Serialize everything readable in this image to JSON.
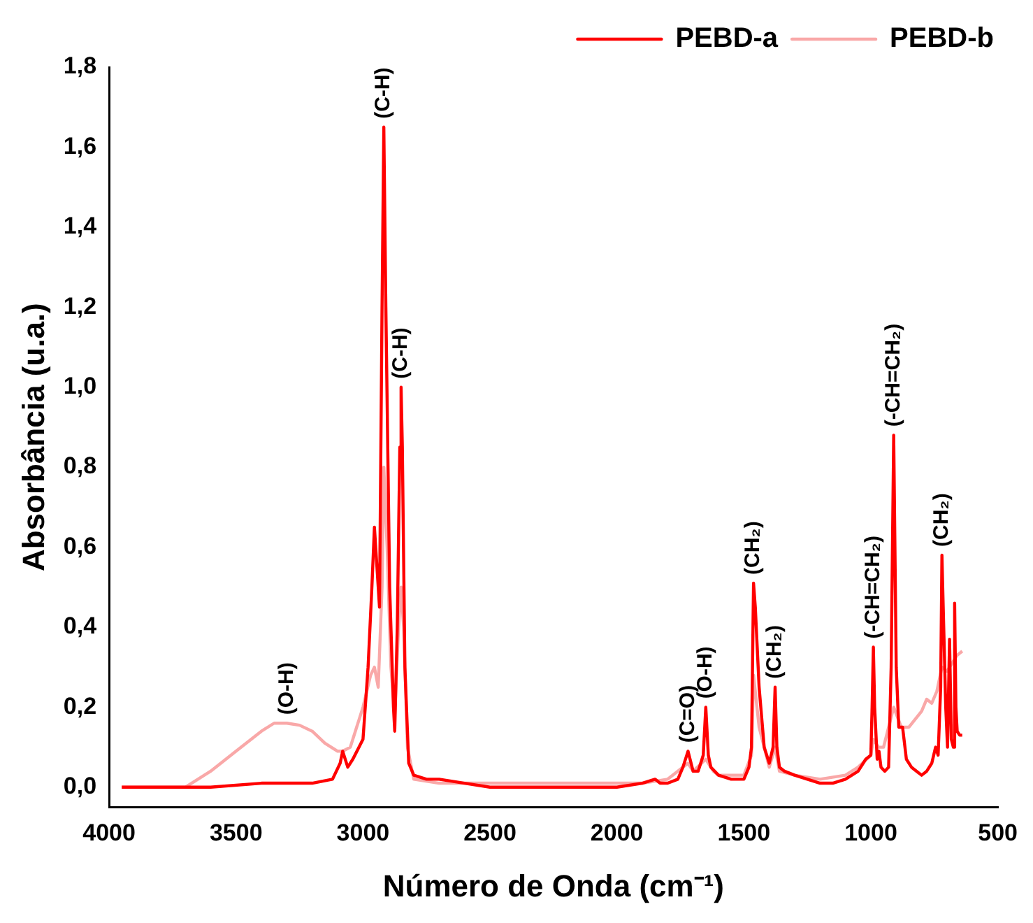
{
  "chart_data": {
    "type": "line",
    "xlabel": "Número de Onda (cm⁻¹)",
    "ylabel": "Absorbância (u.a.)",
    "xlim": [
      4000,
      500
    ],
    "xticks": [
      4000,
      3500,
      3000,
      2500,
      2000,
      1500,
      1000,
      500
    ],
    "ylim": [
      -0.05,
      1.8
    ],
    "yticks": [
      {
        "value": 0,
        "label": "0,0"
      },
      {
        "value": 0.2,
        "label": "0,2"
      },
      {
        "value": 0.4,
        "label": "0,4"
      },
      {
        "value": 0.6,
        "label": "0,6"
      },
      {
        "value": 0.8,
        "label": "0,8"
      },
      {
        "value": 1.0,
        "label": "1,0"
      },
      {
        "value": 1.2,
        "label": "1,2"
      },
      {
        "value": 1.4,
        "label": "1,4"
      },
      {
        "value": 1.6,
        "label": "1,6"
      },
      {
        "value": 1.8,
        "label": "1,8"
      }
    ],
    "grid": false,
    "legend": "top right",
    "marker": "none",
    "line_style": "solid",
    "series": [
      {
        "name": "PEBD-a",
        "color": "#ff0000",
        "x": [
          3950,
          3800,
          3600,
          3400,
          3200,
          3120,
          3090,
          3080,
          3060,
          3040,
          3000,
          2980,
          2965,
          2955,
          2945,
          2935,
          2925,
          2918,
          2910,
          2895,
          2880,
          2875,
          2865,
          2855,
          2850,
          2845,
          2835,
          2820,
          2800,
          2750,
          2700,
          2600,
          2500,
          2400,
          2300,
          2200,
          2100,
          2000,
          1900,
          1850,
          1830,
          1800,
          1760,
          1740,
          1720,
          1700,
          1680,
          1660,
          1650,
          1640,
          1630,
          1600,
          1550,
          1500,
          1480,
          1470,
          1462,
          1455,
          1440,
          1420,
          1400,
          1385,
          1377,
          1370,
          1360,
          1340,
          1300,
          1250,
          1200,
          1150,
          1100,
          1050,
          1020,
          1000,
          995,
          990,
          985,
          975,
          968,
          960,
          945,
          930,
          920,
          910,
          900,
          890,
          875,
          860,
          840,
          820,
          800,
          780,
          760,
          745,
          735,
          725,
          720,
          715,
          705,
          698,
          690,
          683,
          675,
          670,
          665,
          660,
          650,
          640
        ],
        "values": [
          0.0,
          0.0,
          0.0,
          0.01,
          0.01,
          0.02,
          0.06,
          0.09,
          0.05,
          0.07,
          0.12,
          0.3,
          0.5,
          0.65,
          0.55,
          0.45,
          1.2,
          1.65,
          1.2,
          0.5,
          0.2,
          0.14,
          0.4,
          0.85,
          1.0,
          0.85,
          0.3,
          0.06,
          0.03,
          0.02,
          0.02,
          0.01,
          0.0,
          0.0,
          0.0,
          0.0,
          0.0,
          0.0,
          0.01,
          0.02,
          0.01,
          0.01,
          0.02,
          0.05,
          0.09,
          0.04,
          0.04,
          0.08,
          0.2,
          0.08,
          0.05,
          0.03,
          0.02,
          0.02,
          0.05,
          0.1,
          0.51,
          0.45,
          0.25,
          0.1,
          0.06,
          0.1,
          0.25,
          0.1,
          0.05,
          0.04,
          0.03,
          0.02,
          0.01,
          0.01,
          0.02,
          0.04,
          0.07,
          0.08,
          0.2,
          0.35,
          0.2,
          0.07,
          0.09,
          0.05,
          0.04,
          0.05,
          0.3,
          0.88,
          0.3,
          0.15,
          0.15,
          0.07,
          0.05,
          0.04,
          0.03,
          0.04,
          0.06,
          0.1,
          0.08,
          0.25,
          0.58,
          0.45,
          0.2,
          0.1,
          0.37,
          0.12,
          0.1,
          0.46,
          0.2,
          0.14,
          0.13,
          0.13
        ]
      },
      {
        "name": "PEBD-b",
        "color": "#f9a8a8",
        "x": [
          3950,
          3800,
          3700,
          3650,
          3600,
          3500,
          3400,
          3350,
          3300,
          3250,
          3200,
          3150,
          3100,
          3080,
          3050,
          3000,
          2970,
          2955,
          2940,
          2925,
          2918,
          2905,
          2890,
          2875,
          2860,
          2850,
          2840,
          2825,
          2800,
          2700,
          2500,
          2300,
          2100,
          2000,
          1900,
          1800,
          1720,
          1700,
          1650,
          1620,
          1600,
          1500,
          1470,
          1462,
          1440,
          1400,
          1377,
          1360,
          1300,
          1200,
          1100,
          1050,
          1000,
          990,
          970,
          950,
          910,
          880,
          850,
          800,
          780,
          760,
          740,
          720,
          700,
          680,
          660,
          640
        ],
        "values": [
          0.0,
          0.0,
          0.0,
          0.02,
          0.04,
          0.09,
          0.14,
          0.16,
          0.16,
          0.155,
          0.14,
          0.11,
          0.09,
          0.09,
          0.1,
          0.2,
          0.28,
          0.3,
          0.25,
          0.5,
          0.8,
          0.6,
          0.3,
          0.18,
          0.4,
          0.5,
          0.4,
          0.1,
          0.02,
          0.01,
          0.01,
          0.01,
          0.01,
          0.01,
          0.01,
          0.02,
          0.06,
          0.04,
          0.07,
          0.04,
          0.03,
          0.03,
          0.08,
          0.28,
          0.15,
          0.05,
          0.1,
          0.04,
          0.03,
          0.02,
          0.03,
          0.05,
          0.08,
          0.12,
          0.1,
          0.1,
          0.2,
          0.15,
          0.15,
          0.19,
          0.22,
          0.21,
          0.24,
          0.3,
          0.29,
          0.31,
          0.33,
          0.34
        ]
      }
    ],
    "annotations": [
      {
        "text": "(O-H)",
        "x": 3300,
        "y": 0.16
      },
      {
        "text": "(C-H)",
        "x": 2918,
        "y": 1.65
      },
      {
        "text": "(C-H)",
        "x": 2850,
        "y": 1.0
      },
      {
        "text": "(C=O)",
        "x": 1720,
        "y": 0.09
      },
      {
        "text": "(O-H)",
        "x": 1650,
        "y": 0.2
      },
      {
        "text": "(CH₂)",
        "x": 1462,
        "y": 0.51
      },
      {
        "text": "(CH₂)",
        "x": 1377,
        "y": 0.25
      },
      {
        "text": "(-CH=CH₂)",
        "x": 990,
        "y": 0.35
      },
      {
        "text": "(-CH=CH₂)",
        "x": 910,
        "y": 0.88
      },
      {
        "text": "(CH₂)",
        "x": 720,
        "y": 0.58
      }
    ]
  }
}
